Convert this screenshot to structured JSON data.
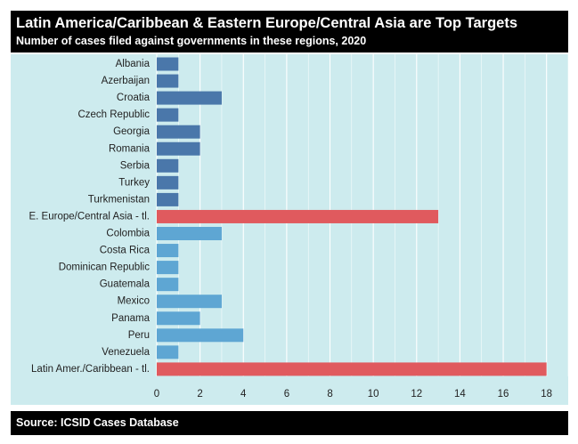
{
  "header": {
    "title": "Latin America/Caribbean & Eastern Europe/Central Asia are Top Targets",
    "subtitle": "Number of cases filed against governments in these regions, 2020"
  },
  "footer": {
    "source": "Source: ICSID Cases Database"
  },
  "colors": {
    "europe_country": "#4a77aa",
    "latin_country": "#5ea6d3",
    "region_total": "#e05a5e",
    "panel_background": "#cdebee",
    "header_background": "#000000"
  },
  "chart_data": {
    "type": "bar",
    "orientation": "horizontal",
    "title": "Latin America/Caribbean & Eastern Europe/Central Asia are Top Targets",
    "subtitle": "Number of cases filed against governments in these regions, 2020",
    "xlabel": "",
    "ylabel": "",
    "xlim": [
      0,
      19
    ],
    "xticks": [
      0,
      2,
      4,
      6,
      8,
      10,
      12,
      14,
      16,
      18
    ],
    "grid": true,
    "categories": [
      "Albania",
      "Azerbaijan",
      "Croatia",
      "Czech Republic",
      "Georgia",
      "Romania",
      "Serbia",
      "Turkey",
      "Turkmenistan",
      "E. Europe/Central Asia - tl.",
      "Colombia",
      "Costa Rica",
      "Dominican Republic",
      "Guatemala",
      "Mexico",
      "Panama",
      "Peru",
      "Venezuela",
      "Latin Amer./Caribbean - tl."
    ],
    "values": [
      1,
      1,
      3,
      1,
      2,
      2,
      1,
      1,
      1,
      13,
      3,
      1,
      1,
      1,
      3,
      2,
      4,
      1,
      18
    ],
    "groups": [
      "europe_country",
      "europe_country",
      "europe_country",
      "europe_country",
      "europe_country",
      "europe_country",
      "europe_country",
      "europe_country",
      "europe_country",
      "region_total",
      "latin_country",
      "latin_country",
      "latin_country",
      "latin_country",
      "latin_country",
      "latin_country",
      "latin_country",
      "latin_country",
      "region_total"
    ]
  }
}
